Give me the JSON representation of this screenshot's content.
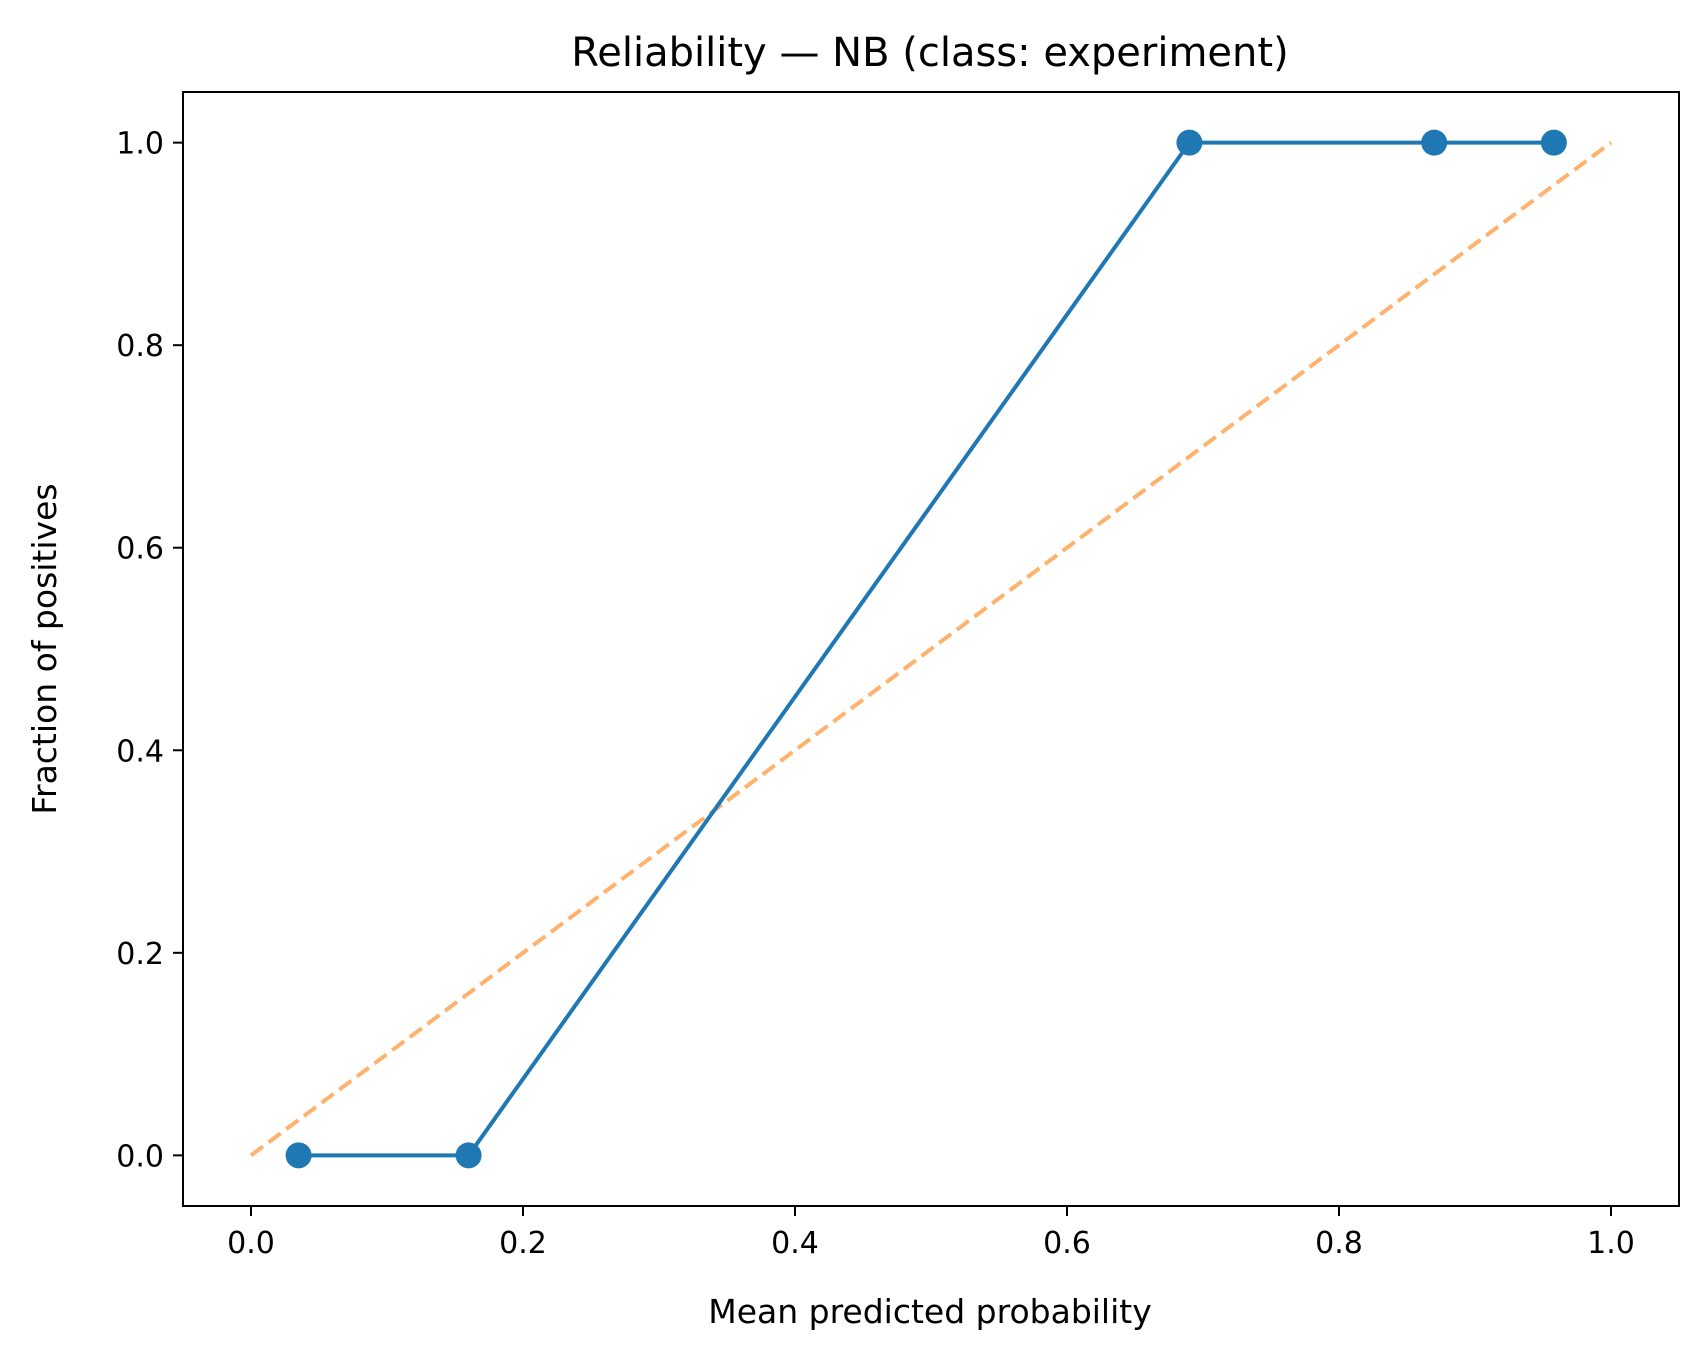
{
  "chart_data": {
    "type": "line",
    "title": "Reliability — NB (class: experiment)",
    "xlabel": "Mean predicted probability",
    "ylabel": "Fraction of positives",
    "xlim": [
      -0.05,
      1.05
    ],
    "ylim": [
      -0.05,
      1.05
    ],
    "xticks": [
      "0.0",
      "0.2",
      "0.4",
      "0.6",
      "0.8",
      "1.0"
    ],
    "yticks": [
      "0.0",
      "0.2",
      "0.4",
      "0.6",
      "0.8",
      "1.0"
    ],
    "grid": false,
    "legend": "none",
    "series": [
      {
        "style": "solid-line-with-markers",
        "color": "#1f77b4",
        "x": [
          0.035,
          0.16,
          0.69,
          0.87,
          0.958
        ],
        "y": [
          0.0,
          0.0,
          1.0,
          1.0,
          1.0
        ]
      },
      {
        "style": "dashed",
        "color": "#ffb26e",
        "x": [
          0.0,
          1.0
        ],
        "y": [
          0.0,
          1.0
        ]
      }
    ]
  }
}
